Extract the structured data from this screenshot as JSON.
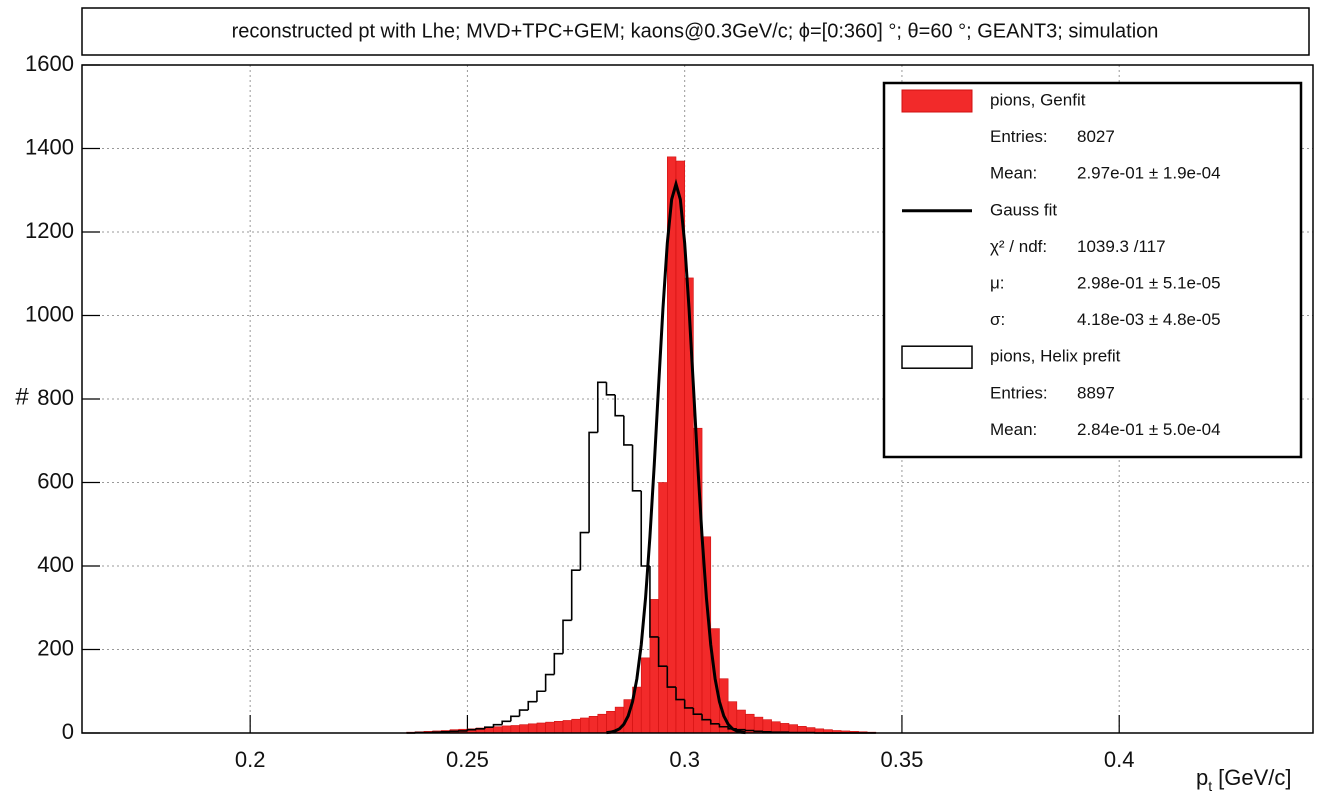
{
  "chart_data": {
    "type": "histogram",
    "title": "reconstructed pt with Lhe; MVD+TPC+GEM; kaons@0.3GeV/c; ϕ=[0:360] °; θ=60 °; GEANT3; simulation",
    "x_label": {
      "symbol": "p",
      "subscript": "t",
      "unit": "[GeV/c]"
    },
    "y_label": "#",
    "xlim": [
      0.1613,
      0.4446
    ],
    "ylim": [
      0,
      1600
    ],
    "xticks": [
      0.2,
      0.25,
      0.3,
      0.35,
      0.4
    ],
    "yticks": [
      0,
      200,
      400,
      600,
      800,
      1000,
      1200,
      1400,
      1600
    ],
    "grid": true,
    "legend": "top-right",
    "bins": [
      0.236,
      0.238,
      0.24,
      0.242,
      0.244,
      0.246,
      0.248,
      0.25,
      0.252,
      0.254,
      0.256,
      0.258,
      0.26,
      0.262,
      0.264,
      0.266,
      0.268,
      0.27,
      0.272,
      0.274,
      0.276,
      0.278,
      0.28,
      0.282,
      0.284,
      0.286,
      0.288,
      0.29,
      0.292,
      0.294,
      0.296,
      0.298,
      0.3,
      0.302,
      0.304,
      0.306,
      0.308,
      0.31,
      0.312,
      0.314,
      0.316,
      0.318,
      0.32,
      0.322,
      0.324,
      0.326,
      0.328,
      0.33,
      0.332,
      0.334,
      0.336,
      0.338,
      0.34,
      0.342,
      0.344
    ],
    "series": [
      {
        "name": "pions, Genfit",
        "style": "filled",
        "color": "#f22a2a",
        "values": [
          2,
          3,
          4,
          5,
          6,
          8,
          9,
          10,
          12,
          13,
          15,
          17,
          18,
          20,
          22,
          24,
          26,
          28,
          30,
          33,
          36,
          40,
          45,
          52,
          62,
          80,
          110,
          180,
          320,
          600,
          1380,
          1370,
          1090,
          730,
          470,
          250,
          130,
          75,
          55,
          45,
          38,
          32,
          27,
          23,
          20,
          16,
          13,
          10,
          8,
          6,
          5,
          4,
          3,
          2
        ],
        "stats": [
          {
            "label": "Entries:",
            "value": 8027
          },
          {
            "label": "Mean:",
            "value": "2.97e-01 ± 1.9e-04"
          }
        ]
      },
      {
        "name": "pions, Helix prefit",
        "style": "step",
        "color": "#000000",
        "values": [
          0,
          1,
          1,
          2,
          3,
          4,
          5,
          8,
          10,
          14,
          20,
          28,
          40,
          55,
          75,
          100,
          140,
          190,
          270,
          390,
          480,
          720,
          840,
          810,
          760,
          690,
          580,
          400,
          230,
          160,
          110,
          80,
          60,
          45,
          32,
          22,
          15,
          10,
          8,
          6,
          4,
          3,
          2,
          2,
          1,
          1,
          1,
          0,
          0,
          0,
          0,
          0,
          0,
          0
        ],
        "stats": [
          {
            "label": "Entries:",
            "value": 8897
          },
          {
            "label": "Mean:",
            "value": "2.84e-01 ± 5.0e-04"
          }
        ]
      }
    ],
    "fit": {
      "name": "Gauss fit",
      "color": "#000000",
      "x": [
        0.282,
        0.283,
        0.284,
        0.285,
        0.286,
        0.287,
        0.288,
        0.289,
        0.29,
        0.291,
        0.292,
        0.293,
        0.294,
        0.295,
        0.296,
        0.297,
        0.298,
        0.299,
        0.3,
        0.301,
        0.302,
        0.303,
        0.304,
        0.305,
        0.306,
        0.307,
        0.308,
        0.309,
        0.31,
        0.311,
        0.312,
        0.313,
        0.314
      ],
      "values": [
        1,
        2,
        5,
        10,
        21,
        41,
        75,
        130,
        211,
        324,
        470,
        643,
        832,
        1017,
        1173,
        1278,
        1315,
        1278,
        1173,
        1017,
        832,
        643,
        470,
        324,
        211,
        130,
        75,
        41,
        21,
        10,
        5,
        2,
        1
      ],
      "stats": [
        {
          "label": "χ² / ndf:",
          "value": "1039.3 /117"
        },
        {
          "label": "μ:",
          "value": "2.98e-01 ± 5.1e-05"
        },
        {
          "label": "σ:",
          "value": "4.18e-03 ± 4.8e-05"
        }
      ]
    }
  }
}
